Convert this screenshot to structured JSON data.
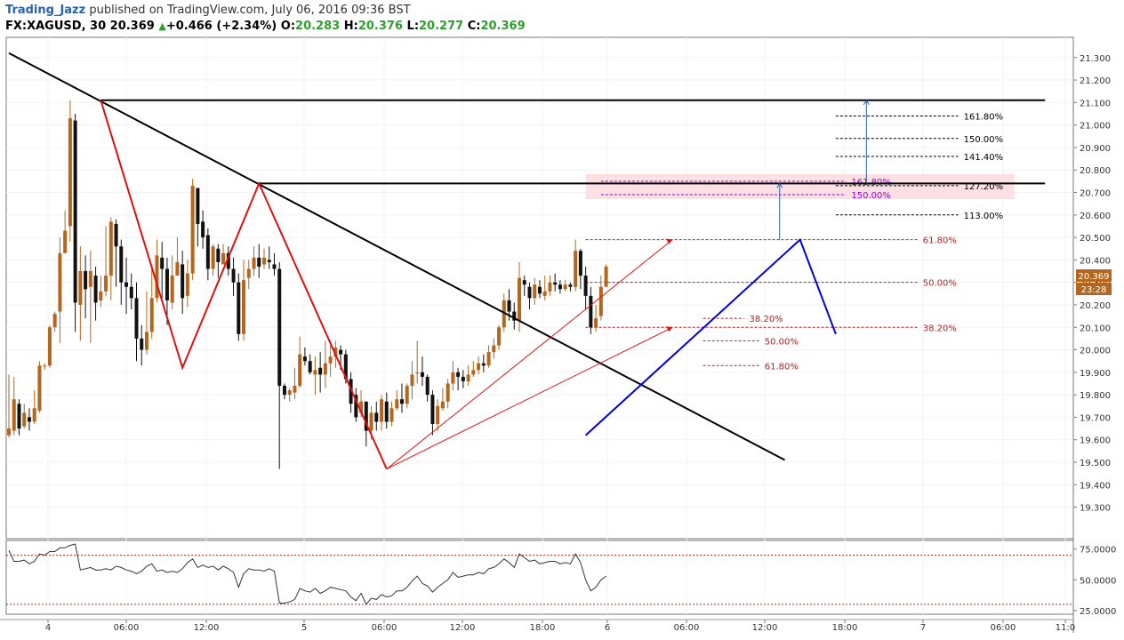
{
  "header": {
    "author": "Trading_Jazz",
    "published": "published on TradingView.com, July 06, 2016 09:36 BST",
    "symbol": "FX:XAGUSD, 30",
    "last": "20.369",
    "change": "+0.466 (+2.34%)",
    "o_label": "O:",
    "o": "20.283",
    "h_label": "H:",
    "h": "20.376",
    "l_label": "L:",
    "l": "20.277",
    "c_label": "C:",
    "c": "20.369"
  },
  "price_badges": {
    "last": "20.369",
    "countdown": "23:28"
  },
  "colors": {
    "bull": "#b5651d",
    "bear": "#111111",
    "zigzag_red": "#e01010",
    "pattern_blue": "#0000dd",
    "fib_dark": "#000000",
    "fib_red": "#b22222",
    "fib_purple": "#9400d3",
    "zone_fill": "#fde0e4",
    "rsi_line": "#333333",
    "rsi_levels": "#b22222"
  },
  "chart_data": [
    {
      "type": "candlestick",
      "symbol": "FX:XAGUSD",
      "interval": "30",
      "ylim": [
        19.16,
        21.39
      ],
      "yticks": [
        "21.300",
        "21.200",
        "21.100",
        "21.000",
        "20.900",
        "20.800",
        "20.700",
        "20.600",
        "20.500",
        "20.400",
        "20.300",
        "20.200",
        "20.100",
        "20.000",
        "19.900",
        "19.800",
        "19.700",
        "19.600",
        "19.500",
        "19.400",
        "19.300"
      ],
      "x_ticks": [
        "4",
        "06:00",
        "12:00",
        "5",
        "06:00",
        "12:00",
        "18:00",
        "6",
        "06:00",
        "12:00",
        "18:00",
        "7",
        "06:00",
        "11:0"
      ],
      "candles": [
        [
          19.62,
          19.65,
          19.89,
          19.61
        ],
        [
          19.64,
          19.78,
          19.88,
          19.62
        ],
        [
          19.76,
          19.65,
          19.78,
          19.62
        ],
        [
          19.66,
          19.72,
          19.76,
          19.65
        ],
        [
          19.7,
          19.68,
          19.74,
          19.64
        ],
        [
          19.68,
          19.74,
          19.82,
          19.67
        ],
        [
          19.73,
          19.93,
          19.95,
          19.72
        ],
        [
          19.93,
          19.93,
          19.94,
          19.91
        ],
        [
          19.93,
          20.1,
          20.11,
          19.92
        ],
        [
          20.1,
          20.16,
          20.17,
          20.08
        ],
        [
          20.17,
          20.43,
          20.5,
          20.03
        ],
        [
          20.43,
          20.53,
          20.62,
          20.43
        ],
        [
          20.55,
          21.03,
          21.11,
          20.48
        ],
        [
          21.02,
          20.21,
          21.05,
          20.08
        ],
        [
          20.2,
          20.35,
          20.46,
          20.04
        ],
        [
          20.35,
          20.27,
          20.42,
          20.14
        ],
        [
          20.28,
          20.35,
          20.44,
          20.03
        ],
        [
          20.33,
          20.21,
          20.37,
          20.13
        ],
        [
          20.22,
          20.26,
          20.33,
          20.19
        ],
        [
          20.26,
          20.33,
          20.55,
          20.24
        ],
        [
          20.33,
          20.57,
          20.59,
          20.22
        ],
        [
          20.56,
          20.46,
          20.58,
          20.28
        ],
        [
          20.46,
          20.3,
          20.49,
          20.2
        ],
        [
          20.3,
          20.28,
          20.41,
          20.16
        ],
        [
          20.28,
          20.23,
          20.34,
          20.18
        ],
        [
          20.23,
          20.05,
          20.3,
          19.95
        ],
        [
          20.05,
          20.0,
          20.11,
          19.93
        ],
        [
          20.0,
          20.08,
          20.26,
          19.98
        ],
        [
          20.08,
          20.23,
          20.38,
          20.05
        ],
        [
          20.23,
          20.42,
          20.49,
          20.21
        ],
        [
          20.41,
          20.36,
          20.48,
          20.23
        ],
        [
          20.36,
          20.22,
          20.41,
          20.11
        ],
        [
          20.21,
          20.33,
          20.42,
          20.18
        ],
        [
          20.33,
          20.39,
          20.5,
          20.33
        ],
        [
          20.38,
          20.23,
          20.44,
          20.16
        ],
        [
          20.24,
          20.34,
          20.4,
          20.19
        ],
        [
          20.34,
          20.73,
          20.76,
          20.31
        ],
        [
          20.72,
          20.56,
          20.71,
          20.46
        ],
        [
          20.57,
          20.5,
          20.62,
          20.45
        ],
        [
          20.51,
          20.36,
          20.54,
          20.31
        ],
        [
          20.36,
          20.46,
          20.47,
          20.33
        ],
        [
          20.45,
          20.39,
          20.47,
          20.32
        ],
        [
          20.38,
          20.43,
          20.47,
          20.39
        ],
        [
          20.43,
          20.36,
          20.46,
          20.33
        ],
        [
          20.36,
          20.3,
          20.41,
          20.24
        ],
        [
          20.3,
          20.07,
          20.34,
          20.04
        ],
        [
          20.07,
          20.31,
          20.4,
          20.04
        ],
        [
          20.32,
          20.36,
          20.4,
          20.27
        ],
        [
          20.36,
          20.41,
          20.46,
          20.33
        ],
        [
          20.41,
          20.37,
          20.47,
          20.32
        ],
        [
          20.38,
          20.41,
          20.45,
          20.36
        ],
        [
          20.4,
          20.39,
          20.46,
          20.36
        ],
        [
          20.38,
          20.36,
          20.43,
          20.33
        ],
        [
          20.36,
          19.84,
          20.39,
          19.47
        ],
        [
          19.84,
          19.8,
          19.85,
          19.78
        ],
        [
          19.8,
          19.82,
          19.83,
          19.77
        ],
        [
          19.81,
          19.84,
          19.92,
          19.78
        ],
        [
          19.84,
          19.98,
          20.06,
          19.83
        ],
        [
          19.97,
          19.95,
          20.01,
          19.93
        ],
        [
          19.95,
          19.9,
          19.98,
          19.89
        ],
        [
          19.89,
          19.91,
          19.97,
          19.8
        ],
        [
          19.92,
          19.89,
          19.99,
          19.81
        ],
        [
          19.89,
          19.94,
          20.04,
          19.83
        ],
        [
          19.94,
          19.97,
          20.03,
          19.88
        ],
        [
          19.97,
          20.01,
          20.04,
          19.92
        ],
        [
          20.0,
          19.98,
          20.02,
          19.91
        ],
        [
          19.98,
          19.87,
          20.0,
          19.85
        ],
        [
          19.87,
          19.76,
          19.9,
          19.72
        ],
        [
          19.8,
          19.7,
          19.83,
          19.68
        ],
        [
          19.72,
          19.77,
          19.82,
          19.7
        ],
        [
          19.77,
          19.64,
          19.76,
          19.57
        ],
        [
          19.64,
          19.72,
          19.75,
          19.6
        ],
        [
          19.72,
          19.68,
          19.77,
          19.64
        ],
        [
          19.68,
          19.78,
          19.8,
          19.64
        ],
        [
          19.77,
          19.68,
          19.81,
          19.65
        ],
        [
          19.68,
          19.74,
          19.77,
          19.66
        ],
        [
          19.74,
          19.78,
          19.82,
          19.73
        ],
        [
          19.78,
          19.76,
          19.85,
          19.72
        ],
        [
          19.76,
          19.84,
          19.85,
          19.74
        ],
        [
          19.84,
          19.89,
          19.95,
          19.78
        ],
        [
          19.9,
          19.9,
          20.04,
          19.85
        ],
        [
          19.9,
          19.88,
          19.97,
          19.84
        ],
        [
          19.88,
          19.8,
          19.89,
          19.77
        ],
        [
          19.8,
          19.67,
          19.82,
          19.62
        ],
        [
          19.67,
          19.75,
          19.78,
          19.64
        ],
        [
          19.74,
          19.77,
          19.83,
          19.73
        ],
        [
          19.77,
          19.85,
          19.87,
          19.74
        ],
        [
          19.85,
          19.9,
          19.95,
          19.82
        ],
        [
          19.9,
          19.88,
          19.92,
          19.82
        ],
        [
          19.88,
          19.86,
          19.91,
          19.83
        ],
        [
          19.86,
          19.89,
          19.93,
          19.84
        ],
        [
          19.89,
          19.91,
          19.95,
          19.88
        ],
        [
          19.91,
          19.94,
          19.97,
          19.89
        ],
        [
          19.94,
          19.93,
          19.98,
          19.9
        ],
        [
          19.93,
          19.99,
          20.02,
          19.92
        ],
        [
          19.99,
          20.02,
          20.05,
          19.96
        ],
        [
          20.02,
          20.1,
          20.11,
          20.0
        ],
        [
          20.1,
          20.22,
          20.25,
          20.08
        ],
        [
          20.22,
          20.17,
          20.27,
          20.13
        ],
        [
          20.17,
          20.13,
          20.21,
          20.09
        ],
        [
          20.13,
          20.32,
          20.39,
          20.08
        ],
        [
          20.31,
          20.29,
          20.33,
          20.24
        ],
        [
          20.28,
          20.23,
          20.3,
          20.18
        ],
        [
          20.23,
          20.29,
          20.32,
          20.2
        ],
        [
          20.28,
          20.25,
          20.31,
          20.23
        ],
        [
          20.24,
          20.26,
          20.33,
          20.22
        ],
        [
          20.26,
          20.3,
          20.33,
          20.24
        ],
        [
          20.3,
          20.29,
          20.34,
          20.26
        ],
        [
          20.29,
          20.27,
          20.31,
          20.25
        ],
        [
          20.27,
          20.29,
          20.31,
          20.26
        ],
        [
          20.29,
          20.28,
          20.3,
          20.26
        ],
        [
          20.28,
          20.44,
          20.49,
          20.26
        ],
        [
          20.44,
          20.33,
          20.45,
          20.27
        ],
        [
          20.33,
          20.24,
          20.37,
          20.18
        ],
        [
          20.24,
          20.1,
          20.28,
          20.07
        ],
        [
          20.1,
          20.14,
          20.2,
          20.08
        ],
        [
          20.15,
          20.28,
          20.33,
          20.13
        ],
        [
          20.28,
          20.37,
          20.38,
          20.28
        ]
      ],
      "trendlines": [
        {
          "name": "descending-trendline",
          "points": [
            [
              0,
              21.32
            ],
            [
              152,
              19.51
            ]
          ]
        },
        {
          "name": "resistance-upper",
          "points": [
            [
              18,
              21.11
            ],
            [
              203,
              21.11
            ]
          ]
        },
        {
          "name": "resistance-lower",
          "points": [
            [
              49,
              20.74
            ],
            [
              203,
              20.74
            ]
          ]
        },
        {
          "name": "zigzag",
          "points": [
            [
              18,
              21.11
            ],
            [
              34,
              19.92
            ],
            [
              49,
              20.74
            ],
            [
              74,
              19.47
            ]
          ]
        },
        {
          "name": "rising-channel",
          "points": [
            [
              113,
              19.62
            ],
            [
              155,
              20.49
            ],
            [
              162,
              20.07
            ]
          ]
        },
        {
          "name": "projection-arrow-upper",
          "points": [
            [
              74,
              19.47
            ],
            [
              130,
              20.49
            ]
          ]
        },
        {
          "name": "projection-arrow-lower",
          "points": [
            [
              74,
              19.47
            ],
            [
              130,
              20.1
            ]
          ]
        }
      ],
      "fib_levels": [
        {
          "label": "161.80%",
          "value": 21.04,
          "color": "#000000"
        },
        {
          "label": "150.00%",
          "value": 20.94,
          "color": "#000000"
        },
        {
          "label": "141.40%",
          "value": 20.86,
          "color": "#000000"
        },
        {
          "label": "127.20%",
          "value": 20.73,
          "color": "#000000"
        },
        {
          "label": "113.00%",
          "value": 20.6,
          "color": "#000000"
        },
        {
          "label": "61.80%",
          "value": 20.49,
          "color": "#b22222"
        },
        {
          "label": "50.00%",
          "value": 20.3,
          "color": "#b22222"
        },
        {
          "label": "38.20%",
          "value": 20.1,
          "color": "#b22222"
        },
        {
          "label": "38.20%",
          "value": 20.14,
          "color": "#b22222"
        },
        {
          "label": "50.00%",
          "value": 20.04,
          "color": "#b22222"
        },
        {
          "label": "61.80%",
          "value": 19.93,
          "color": "#b22222"
        },
        {
          "label": "161.80%",
          "value": 20.75,
          "color": "#9400d3"
        },
        {
          "label": "150.00%",
          "value": 20.69,
          "color": "#9400d3"
        }
      ],
      "last_price": 20.369
    },
    {
      "type": "line",
      "name": "rsi",
      "ylim": [
        22,
        82
      ],
      "yticks": [
        "75.0000",
        "50.0000",
        "25.0000"
      ],
      "levels": [
        70,
        30
      ],
      "values": [
        74,
        65,
        65,
        66,
        63,
        65,
        71,
        70,
        73,
        73,
        76,
        76,
        78,
        79,
        58,
        59,
        60,
        58,
        58,
        59,
        58,
        61,
        60,
        58,
        57,
        55,
        57,
        61,
        63,
        57,
        58,
        56,
        57,
        56,
        59,
        64,
        67,
        60,
        62,
        60,
        61,
        58,
        61,
        59,
        56,
        44,
        55,
        59,
        58,
        58,
        57,
        59,
        57,
        31,
        31,
        32,
        34,
        43,
        41,
        40,
        43,
        39,
        41,
        44,
        43,
        42,
        41,
        36,
        33,
        39,
        30,
        35,
        34,
        38,
        36,
        37,
        41,
        41,
        44,
        49,
        53,
        47,
        45,
        40,
        44,
        47,
        50,
        56,
        52,
        53,
        54,
        54,
        56,
        55,
        59,
        60,
        63,
        67,
        64,
        60,
        71,
        68,
        65,
        66,
        63,
        64,
        65,
        65,
        63,
        64,
        63,
        71,
        64,
        50,
        41,
        44,
        50,
        53
      ]
    }
  ]
}
